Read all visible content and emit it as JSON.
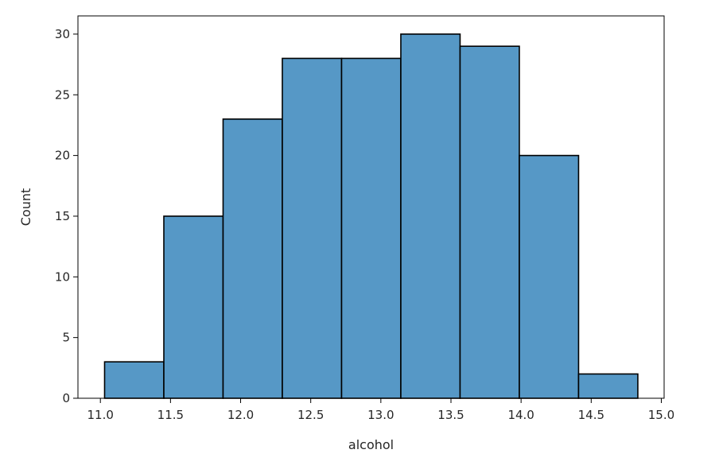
{
  "chart_data": {
    "type": "bar",
    "histogram": true,
    "bin_edges": [
      11.03,
      11.4525,
      11.875,
      12.2975,
      12.72,
      13.1425,
      13.565,
      13.9875,
      14.41,
      14.8325
    ],
    "values": [
      3,
      15,
      23,
      28,
      28,
      30,
      29,
      20,
      2
    ],
    "xlabel": "alcohol",
    "ylabel": "Count",
    "xlim": [
      10.84,
      15.02
    ],
    "ylim": [
      0,
      31.5
    ],
    "xticks": [
      "11.0",
      "11.5",
      "12.0",
      "12.5",
      "13.0",
      "13.5",
      "14.0",
      "14.5",
      "15.0"
    ],
    "yticks": [
      "0",
      "5",
      "10",
      "15",
      "20",
      "25",
      "30"
    ],
    "grid": false,
    "colors": {
      "bar_fill": "#5698c6",
      "bar_edge": "#000000",
      "axes": "#000000",
      "text": "#262626"
    }
  }
}
